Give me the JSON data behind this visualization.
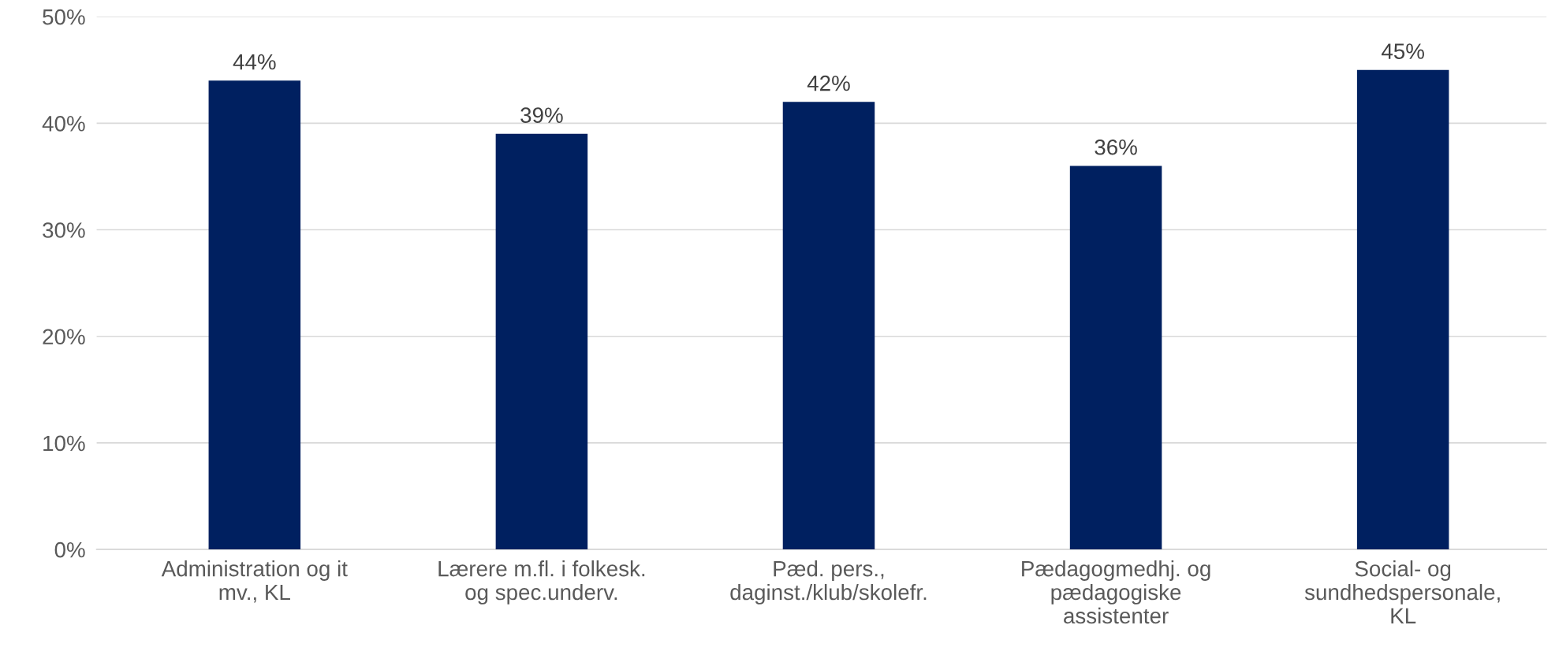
{
  "chart_data": {
    "type": "bar",
    "categories": [
      "Administration og it\nmv., KL",
      "Lærere m.fl. i folkesk.\nog spec.underv.",
      "Pæd. pers.,\ndaginst./klub/skolefr.",
      "Pædagogmedhj. og\npædagogiske\nassistenter",
      "Social- og\nsundhedspersonale,\nKL"
    ],
    "values": [
      44,
      39,
      42,
      36,
      45
    ],
    "color": "#002060",
    "ylim": [
      0,
      50
    ],
    "yticks": [
      {
        "value": 0,
        "label": "0%"
      },
      {
        "value": 10,
        "label": "10%"
      },
      {
        "value": 20,
        "label": "20%"
      },
      {
        "value": 30,
        "label": "30%"
      },
      {
        "value": 40,
        "label": "40%"
      },
      {
        "value": 50,
        "label": "50%"
      }
    ],
    "value_labels": [
      "44%",
      "39%",
      "42%",
      "36%",
      "45%"
    ],
    "grid": "y",
    "legend": false
  }
}
